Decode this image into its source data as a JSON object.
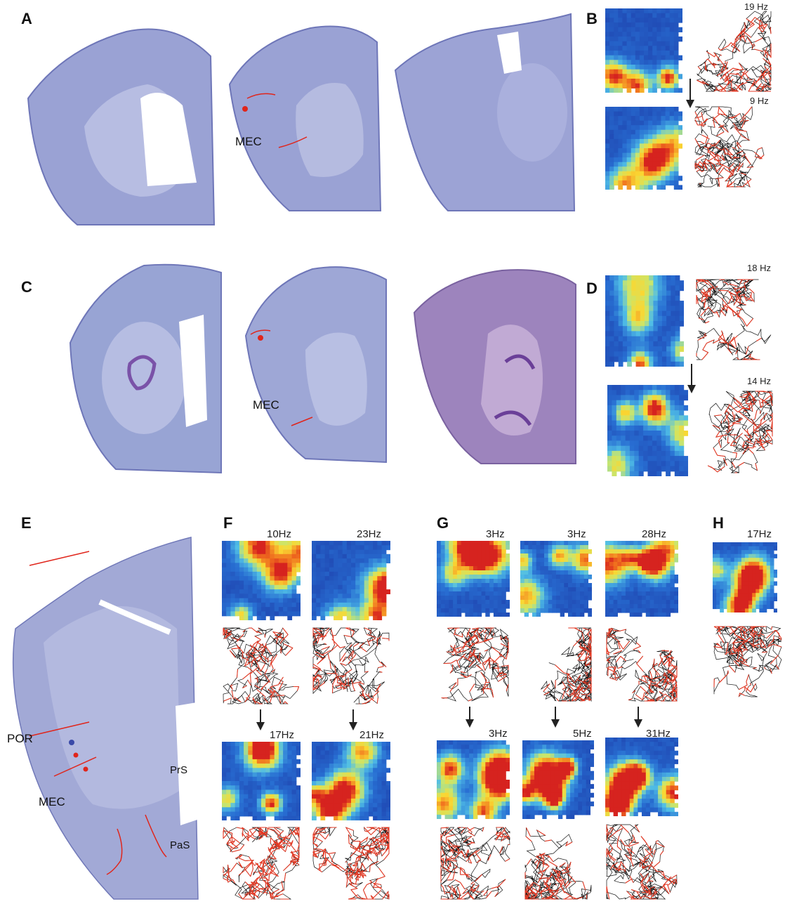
{
  "panels": {
    "A": "A",
    "B": "B",
    "C": "C",
    "D": "D",
    "E": "E",
    "F": "F",
    "G": "G",
    "H": "H"
  },
  "labels": {
    "mec_a": "MEC",
    "mec_c": "MEC",
    "mec_e": "MEC",
    "por": "POR",
    "prs": "PrS",
    "pas": "PaS"
  },
  "rates": {
    "B_top": "19 Hz",
    "B_bottom": "9 Hz",
    "D_top": "18 Hz",
    "D_bottom": "14 Hz",
    "F_top_1": "10Hz",
    "F_top_2": "23Hz",
    "F_bottom_1": "17Hz",
    "F_bottom_2": "21Hz",
    "G_top_1": "3Hz",
    "G_top_2": "3Hz",
    "G_top_3": "28Hz",
    "G_bottom_1": "3Hz",
    "G_bottom_2": "5Hz",
    "G_bottom_3": "31Hz",
    "H_top": "17Hz"
  },
  "colors": {
    "tissue_blue": "#8f98cf",
    "tissue_purple": "#9a7fb8",
    "marker_red": "#e0251b",
    "trajectory_black": "#111111",
    "spike_red": "#e53a25",
    "map_low": "#1a2f9e",
    "map_high": "#d6231f"
  }
}
